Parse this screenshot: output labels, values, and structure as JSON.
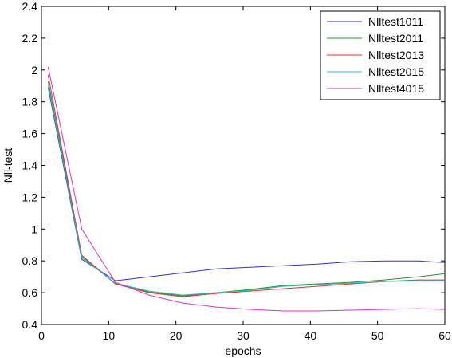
{
  "chart_data": {
    "type": "line",
    "title": "",
    "xlabel": "epochs",
    "ylabel": "Nll-test",
    "xlim": [
      0,
      60
    ],
    "ylim": [
      0.4,
      2.4
    ],
    "xticks": [
      0,
      10,
      20,
      30,
      40,
      50,
      60
    ],
    "yticks": [
      0.4,
      0.6,
      0.8,
      1,
      1.2,
      1.4,
      1.6,
      1.8,
      2,
      2.2,
      2.4
    ],
    "grid": false,
    "legend_position": "top-right",
    "series": [
      {
        "name": "Nlltest1011",
        "color": "#3333cc",
        "x": [
          1,
          6,
          11,
          16,
          21,
          26,
          31,
          36,
          41,
          46,
          51,
          56,
          60
        ],
        "y": [
          1.89,
          0.81,
          0.675,
          0.7,
          0.725,
          0.75,
          0.76,
          0.77,
          0.78,
          0.795,
          0.8,
          0.8,
          0.79
        ]
      },
      {
        "name": "Nlltest2011",
        "color": "#2e8b2e",
        "x": [
          1,
          6,
          11,
          16,
          21,
          26,
          31,
          36,
          41,
          46,
          51,
          56,
          60
        ],
        "y": [
          1.93,
          0.83,
          0.655,
          0.605,
          0.58,
          0.6,
          0.62,
          0.645,
          0.655,
          0.665,
          0.68,
          0.7,
          0.72
        ]
      },
      {
        "name": "Nlltest2013",
        "color": "#e03030",
        "x": [
          1,
          6,
          11,
          16,
          21,
          26,
          31,
          36,
          41,
          46,
          51,
          56,
          60
        ],
        "y": [
          1.97,
          0.835,
          0.655,
          0.6,
          0.575,
          0.595,
          0.61,
          0.625,
          0.64,
          0.655,
          0.67,
          0.68,
          0.68
        ]
      },
      {
        "name": "Nlltest2015",
        "color": "#20c0c0",
        "x": [
          1,
          6,
          11,
          16,
          21,
          26,
          31,
          36,
          41,
          46,
          51,
          56,
          60
        ],
        "y": [
          1.91,
          0.82,
          0.66,
          0.61,
          0.585,
          0.6,
          0.615,
          0.64,
          0.65,
          0.66,
          0.67,
          0.675,
          0.675
        ]
      },
      {
        "name": "Nlltest4015",
        "color": "#d633d6",
        "x": [
          1,
          6,
          11,
          16,
          21,
          26,
          31,
          36,
          41,
          46,
          51,
          56,
          60
        ],
        "y": [
          2.02,
          1.0,
          0.665,
          0.585,
          0.535,
          0.51,
          0.495,
          0.485,
          0.485,
          0.49,
          0.495,
          0.5,
          0.495
        ]
      }
    ]
  }
}
